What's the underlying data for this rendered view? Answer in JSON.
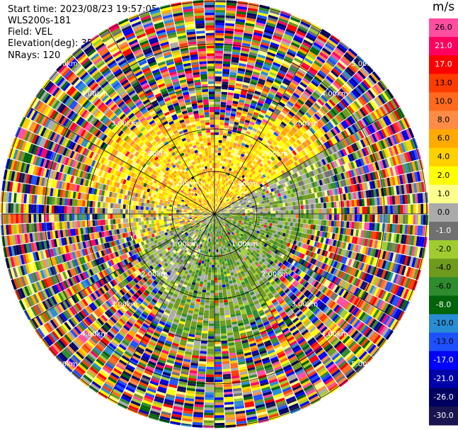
{
  "header": {
    "start_time": "Start time: 2023/08/23 19:57:05",
    "instrument": "WLS200s-181",
    "field": "Field: VEL",
    "elevation": "Elevation(deg): 35.30",
    "nrays": "NRays: 120"
  },
  "colorbar": {
    "title": "m/s",
    "ticks": [
      "26.0",
      "21.0",
      "17.0",
      "13.0",
      "10.0",
      "8.0",
      "6.0",
      "4.0",
      "2.0",
      "1.0",
      "0.0",
      "-1.0",
      "-2.0",
      "-4.0",
      "-6.0",
      "-8.0",
      "-10.0",
      "-13.0",
      "-17.0",
      "-21.0",
      "-26.0",
      "-30.0"
    ],
    "colors": [
      "#ff4ea0",
      "#ff0060",
      "#ff0000",
      "#ff3c00",
      "#ff6a1e",
      "#ff8c46",
      "#ffaa00",
      "#ffd000",
      "#ffff00",
      "#ffff8c",
      "#aaaaaa",
      "#707070",
      "#a0cc30",
      "#6e9a1e",
      "#2e8b2e",
      "#00640a",
      "#2a8cd2",
      "#1e50ff",
      "#0000ff",
      "#0000aa",
      "#000060",
      "#1a1450"
    ]
  },
  "chart_data": {
    "type": "ppi",
    "field": "VEL",
    "units": "m/s",
    "nrays": 120,
    "ring_labels": [
      "1.00km",
      "2.00km",
      "3.00km",
      "4.00km",
      "5.00km"
    ],
    "ring_range_km": [
      1,
      2,
      3,
      4,
      5
    ],
    "spokes_deg": [
      0,
      30,
      60,
      90,
      120,
      150,
      180,
      210,
      240,
      270,
      300,
      330
    ],
    "color_min": -30.0,
    "color_max": 26.0
  }
}
